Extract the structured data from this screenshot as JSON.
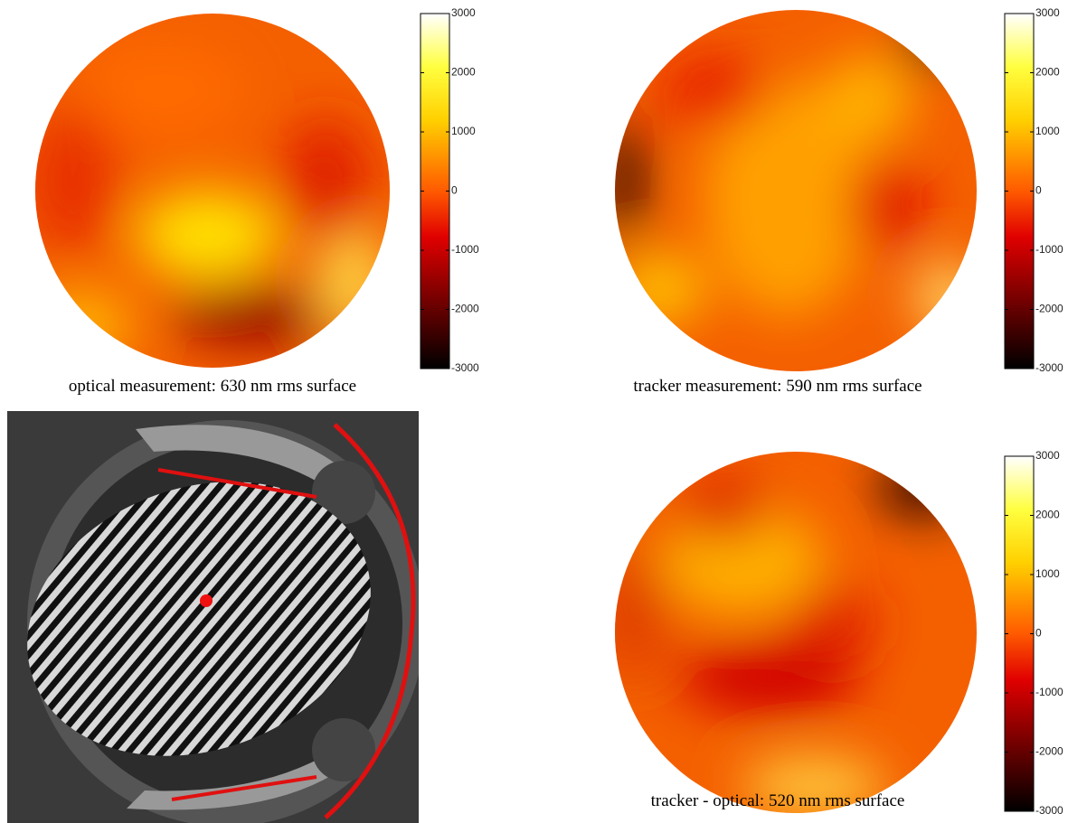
{
  "chart_data": [
    {
      "type": "surface-map",
      "caption": "optical measurement: 630 nm rms surface",
      "clim": [
        -3000,
        3000
      ],
      "cticks": [
        -3000,
        -2000,
        -1000,
        0,
        1000,
        2000,
        3000
      ]
    },
    {
      "type": "surface-map",
      "caption": "tracker measurement: 590 nm rms surface",
      "clim": [
        -3000,
        3000
      ],
      "cticks": [
        -3000,
        -2000,
        -1000,
        0,
        1000,
        2000,
        3000
      ]
    },
    {
      "type": "surface-map",
      "caption": "tracker - optical: 520 nm rms surface",
      "clim": [
        -3000,
        3000
      ],
      "cticks": [
        -3000,
        -2000,
        -1000,
        0,
        1000,
        2000,
        3000
      ]
    }
  ]
}
